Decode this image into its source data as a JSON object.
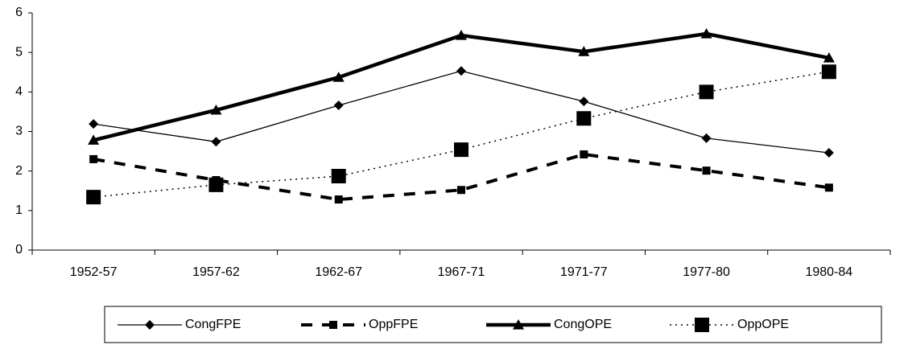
{
  "chart_data": {
    "type": "line",
    "categories": [
      "1952-57",
      "1957-62",
      "1962-67",
      "1967-71",
      "1971-77",
      "1977-80",
      "1980-84"
    ],
    "series": [
      {
        "name": "CongFPE",
        "color": "#000000",
        "values": [
          3.19,
          2.74,
          3.66,
          4.53,
          3.76,
          2.83,
          2.46
        ]
      },
      {
        "name": "OppFPE",
        "color": "#000000",
        "values": [
          2.3,
          1.77,
          1.28,
          1.52,
          2.42,
          2.01,
          1.58
        ]
      },
      {
        "name": "CongOPE",
        "color": "#000000",
        "values": [
          2.78,
          3.54,
          4.37,
          5.43,
          5.02,
          5.47,
          4.86
        ]
      },
      {
        "name": "OppOPE",
        "color": "#000000",
        "values": [
          1.34,
          1.65,
          1.87,
          2.54,
          3.33,
          4.0,
          4.51
        ]
      }
    ],
    "ylim": [
      0,
      6
    ],
    "yticks": [
      0,
      1,
      2,
      3,
      4,
      5,
      6
    ],
    "grid": false,
    "legend": "bottom"
  }
}
